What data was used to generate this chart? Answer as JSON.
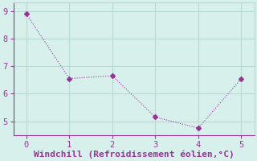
{
  "x": [
    0,
    1,
    2,
    3,
    4,
    5
  ],
  "y": [
    8.9,
    6.55,
    6.65,
    5.15,
    4.75,
    6.55
  ],
  "line_color": "#993399",
  "marker": "D",
  "marker_size": 3,
  "background_color": "#d8f0ec",
  "grid_color": "#b8d8d4",
  "xlabel": "Windchill (Refroidissement éolien,°C)",
  "xlabel_color": "#993399",
  "tick_color": "#993399",
  "spine_color": "#993399",
  "xlim": [
    -0.3,
    5.3
  ],
  "ylim": [
    4.5,
    9.3
  ],
  "yticks": [
    5,
    6,
    7,
    8,
    9
  ],
  "xticks": [
    0,
    1,
    2,
    3,
    4,
    5
  ],
  "font_size": 7.5,
  "xlabel_fontsize": 8
}
